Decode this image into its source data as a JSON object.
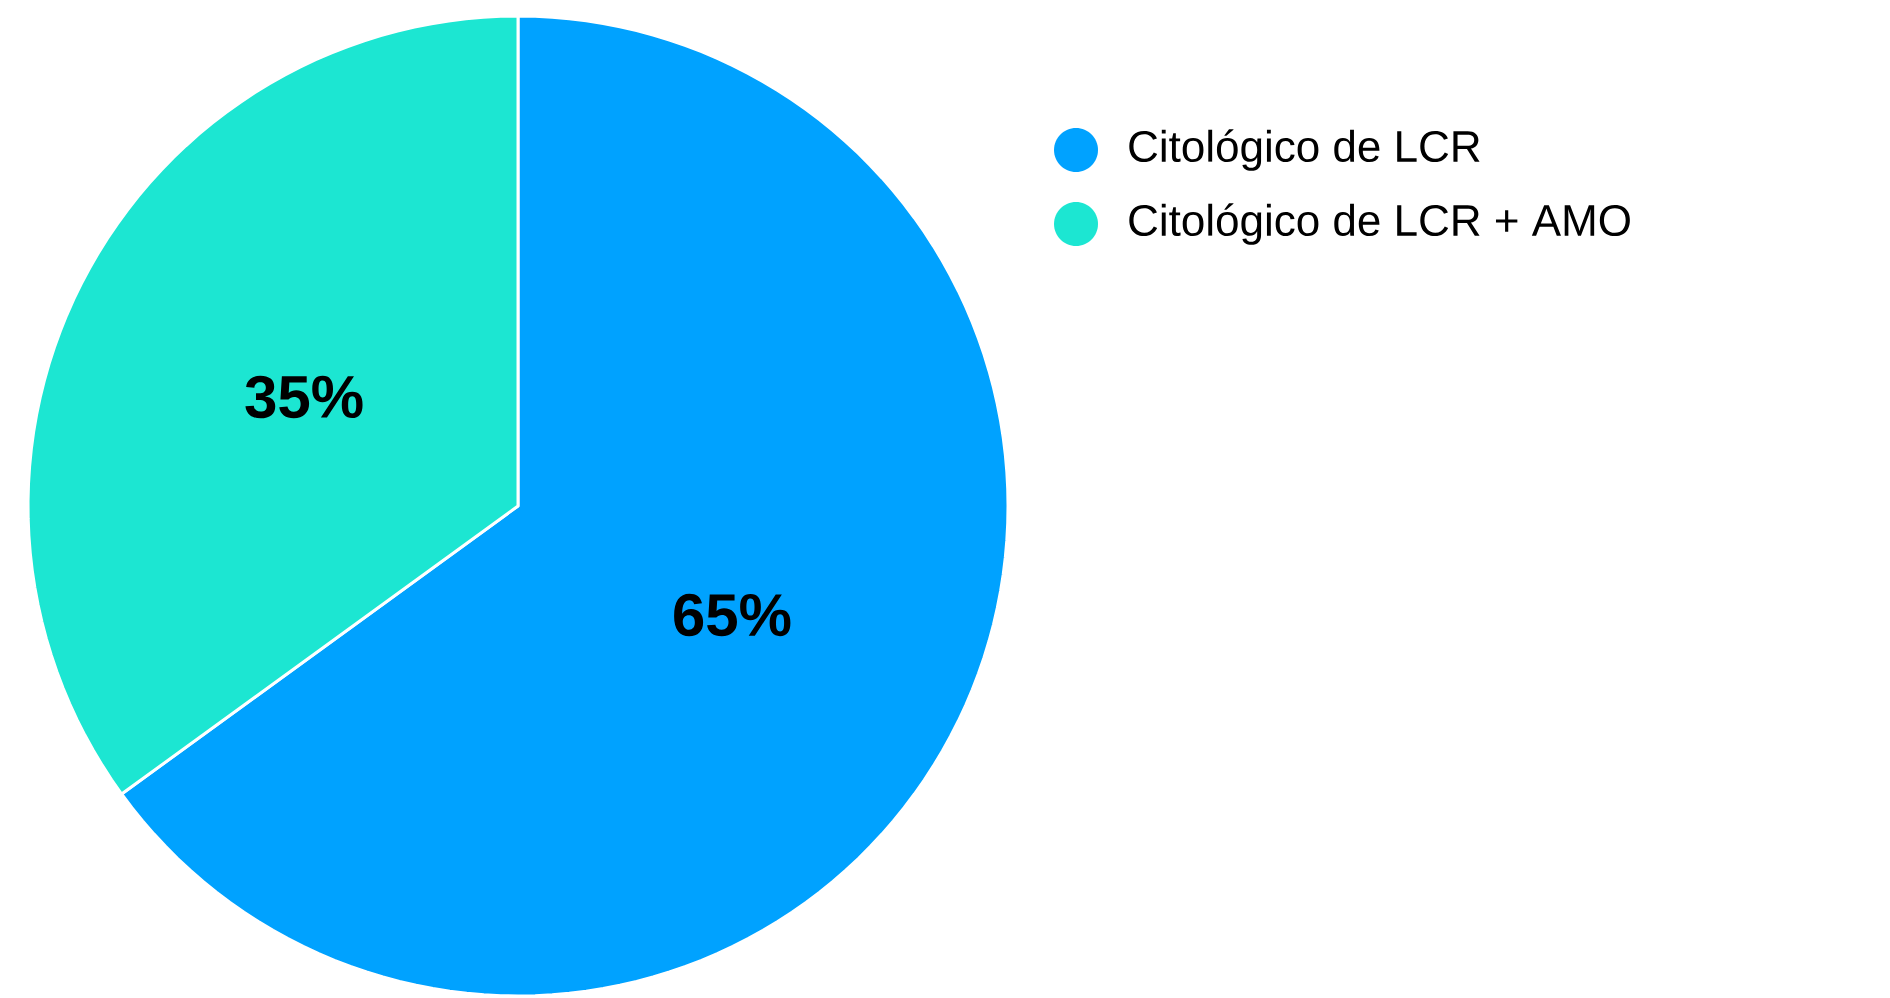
{
  "chart_data": {
    "type": "pie",
    "categories": [
      "Citológico de LCR",
      "Citológico de LCR + AMO"
    ],
    "values": [
      65,
      35
    ],
    "colors": [
      "#00a2ff",
      "#1ce6d2"
    ],
    "value_labels": [
      "65%",
      "35%"
    ],
    "legend": "top right"
  }
}
